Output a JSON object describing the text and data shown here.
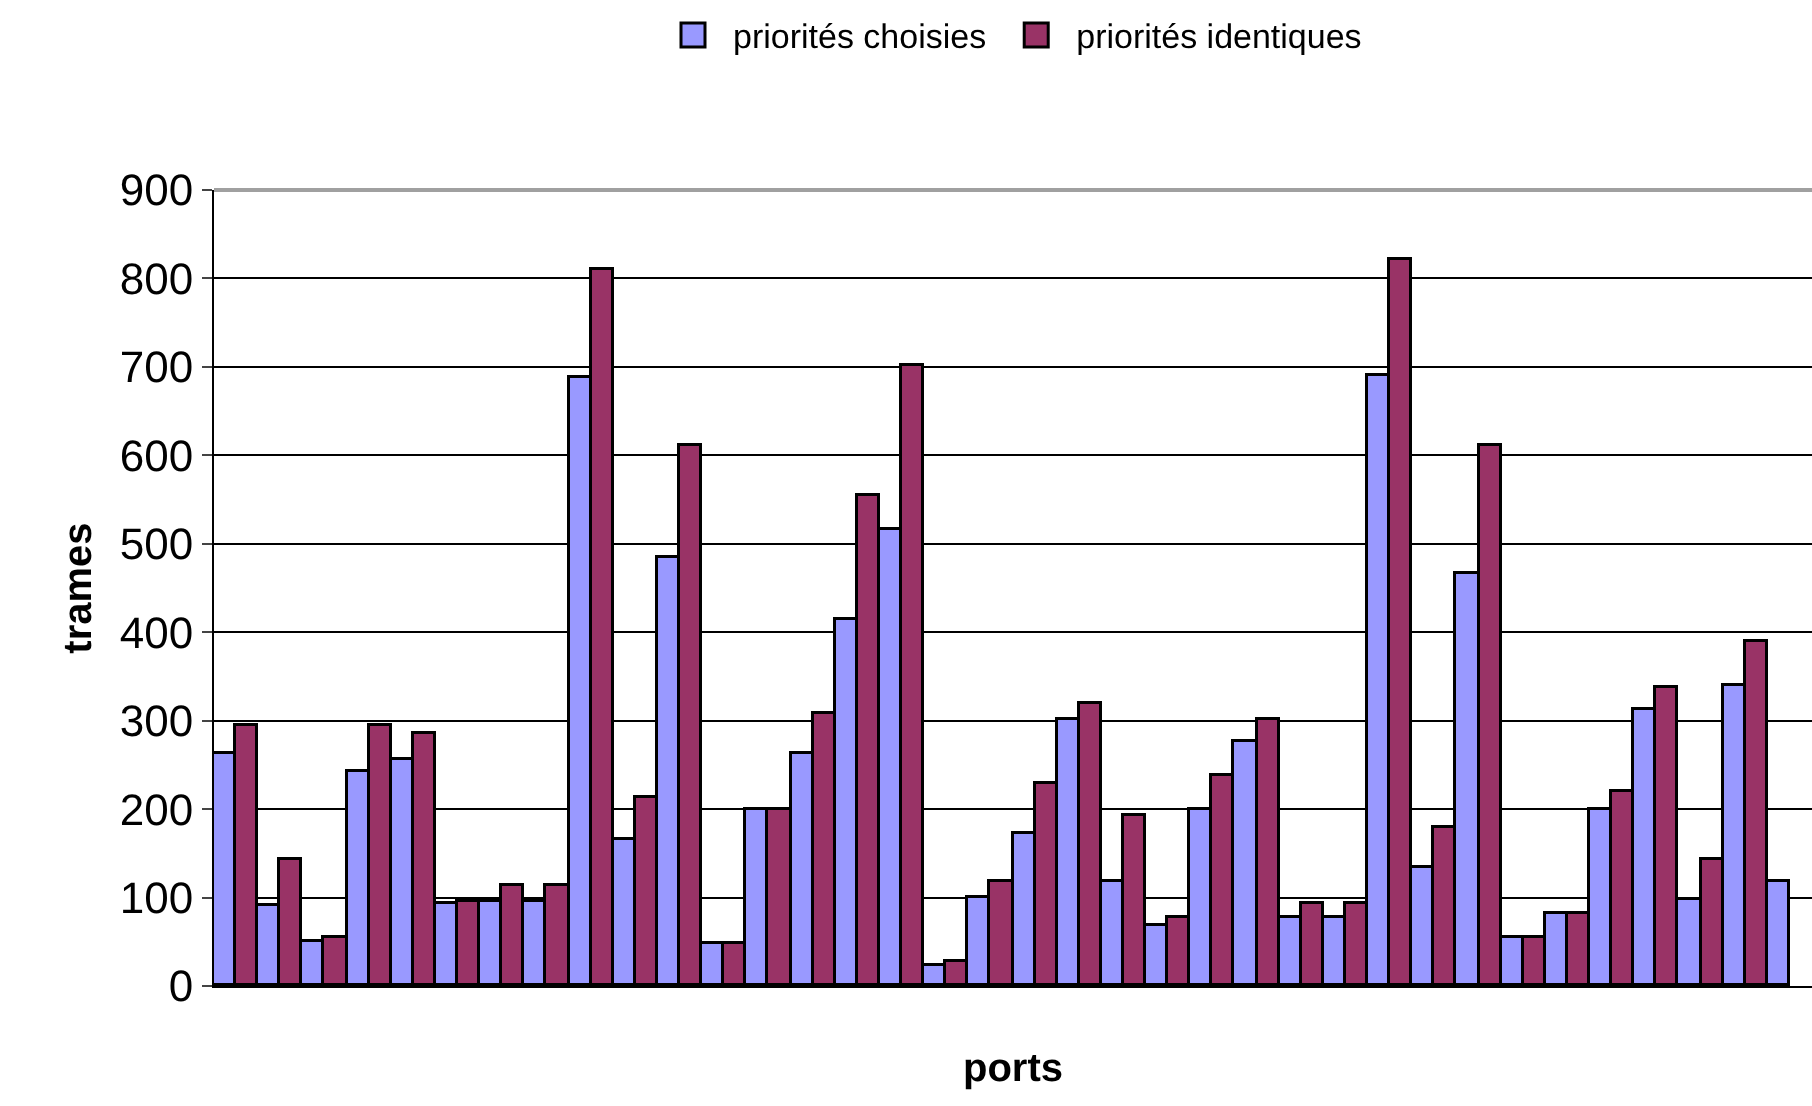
{
  "chart_data": {
    "type": "bar",
    "xlabel": "ports",
    "ylabel": "trames",
    "categories": [
      null,
      null,
      null,
      null,
      null,
      null,
      null,
      null,
      null,
      null,
      null,
      null,
      null,
      null,
      null,
      null,
      null,
      null,
      null,
      null,
      null,
      null,
      null,
      null,
      null,
      null,
      null,
      null,
      null,
      null,
      null,
      null,
      null,
      null,
      null,
      null
    ],
    "series": [
      {
        "name": "priorités choisies",
        "color": "#9999ff",
        "values": [
          262,
          90,
          50,
          242,
          255,
          92,
          95,
          95,
          688,
          165,
          485,
          47,
          200,
          263,
          413,
          515,
          22,
          100,
          173,
          300,
          118,
          68,
          200,
          277,
          78,
          78,
          690,
          133,
          465,
          55,
          82,
          200,
          313,
          97,
          340,
          118
        ]
      },
      {
        "name": "priorités identiques",
        "color": "#993366",
        "values": [
          295,
          142,
          55,
          295,
          285,
          95,
          113,
          113,
          810,
          213,
          610,
          47,
          200,
          308,
          555,
          700,
          28,
          118,
          228,
          318,
          192,
          78,
          238,
          300,
          92,
          92,
          820,
          178,
          610,
          55,
          82,
          220,
          337,
          142,
          390,
          null
        ]
      }
    ],
    "ylim": [
      0,
      900
    ],
    "yticks": [
      0,
      100,
      200,
      300,
      400,
      500,
      600,
      700,
      800,
      900
    ],
    "grid": "y",
    "legend": "top"
  }
}
